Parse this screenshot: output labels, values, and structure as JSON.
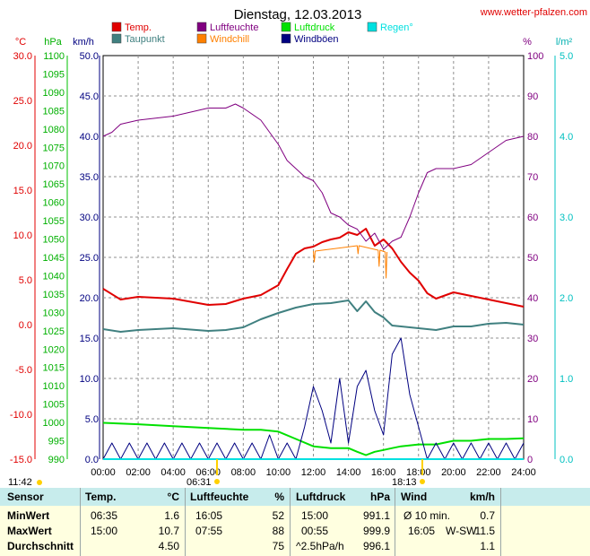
{
  "title": "Dienstag, 12.03.2013",
  "site": "www.wetter-pfalzen.com",
  "colors": {
    "temp": "#e00000",
    "humidity": "#800080",
    "pressure": "#00e000",
    "rain": "#00e0e0",
    "dewpoint": "#408080",
    "windchill": "#ff8000",
    "windgust": "#000080",
    "wind": "#0000c0"
  },
  "legend": [
    {
      "label": "Temp.",
      "color": "#e00000"
    },
    {
      "label": "Luftfeuchte",
      "color": "#800080"
    },
    {
      "label": "Luftdruck",
      "color": "#00e000"
    },
    {
      "label": "Regen°",
      "color": "#00e0e0"
    },
    {
      "label": "Taupunkt",
      "color": "#408080"
    },
    {
      "label": "Windchill",
      "color": "#ff8000"
    },
    {
      "label": "Windböen",
      "color": "#000080"
    }
  ],
  "axes": {
    "temp": {
      "unit": "°C",
      "min": -15,
      "max": 30,
      "ticks": [
        "30.0",
        "25.0",
        "20.0",
        "15.0",
        "10.0",
        "5.0",
        "0.0",
        "-5.0",
        "-10.0",
        "-15.0"
      ]
    },
    "pressure": {
      "unit": "hPa",
      "min": 990,
      "max": 1100,
      "ticks": [
        "1100",
        "1095",
        "1090",
        "1085",
        "1080",
        "1075",
        "1070",
        "1065",
        "1060",
        "1055",
        "1050",
        "1045",
        "1040",
        "1035",
        "1030",
        "1025",
        "1020",
        "1015",
        "1010",
        "1005",
        "1000",
        "995",
        "990"
      ]
    },
    "wind": {
      "unit": "km/h",
      "min": 0,
      "max": 50,
      "ticks": [
        "50.0",
        "45.0",
        "40.0",
        "35.0",
        "30.0",
        "25.0",
        "20.0",
        "15.0",
        "10.0",
        "5.0",
        "0.0"
      ]
    },
    "humidity": {
      "unit": "%",
      "min": 0,
      "max": 100,
      "ticks": [
        "100",
        "90",
        "80",
        "70",
        "60",
        "50",
        "40",
        "30",
        "20",
        "10",
        "0"
      ]
    },
    "rain": {
      "unit": "l/m²",
      "min": 0,
      "max": 5,
      "ticks": [
        "5.0",
        "4.0",
        "3.0",
        "2.0",
        "1.0",
        "0.0"
      ]
    },
    "x_ticks": [
      "00:00",
      "02:00",
      "04:00",
      "06:00",
      "08:00",
      "10:00",
      "12:00",
      "14:00",
      "16:00",
      "18:00",
      "20:00",
      "22:00",
      "24:00"
    ]
  },
  "sun": {
    "moon_time": "11:42",
    "sunrise": "06:31",
    "sunset": "18:13"
  },
  "chart_data": {
    "type": "line",
    "x_unit": "hour",
    "grid": true,
    "legend_placement": "top",
    "series": [
      {
        "name": "Temp.",
        "axis": "temp",
        "x": [
          0,
          1,
          2,
          4,
          6,
          7,
          8,
          9,
          10,
          10.5,
          11,
          11.5,
          12,
          12.5,
          13,
          13.5,
          14,
          14.5,
          15,
          15.5,
          16,
          16.5,
          17,
          17.5,
          18,
          18.5,
          19,
          20,
          21,
          22,
          23,
          24
        ],
        "values": [
          4.0,
          2.8,
          3.1,
          2.9,
          2.2,
          2.3,
          2.9,
          3.3,
          4.4,
          6.2,
          7.9,
          8.5,
          8.7,
          9.2,
          9.5,
          9.7,
          10.3,
          10.0,
          10.7,
          8.8,
          9.5,
          8.5,
          7.0,
          5.8,
          4.9,
          3.5,
          2.9,
          3.6,
          3.2,
          2.8,
          2.4,
          2.0
        ]
      },
      {
        "name": "Taupunkt",
        "axis": "temp",
        "x": [
          0,
          1,
          2,
          4,
          6,
          7,
          8,
          9,
          10,
          11,
          12,
          13,
          14,
          14.5,
          15,
          15.5,
          16,
          16.5,
          17,
          18,
          19,
          20,
          21,
          22,
          23,
          24
        ],
        "values": [
          -0.5,
          -0.8,
          -0.6,
          -0.4,
          -0.7,
          -0.6,
          -0.3,
          0.6,
          1.3,
          1.9,
          2.3,
          2.4,
          2.7,
          1.5,
          2.6,
          1.4,
          0.8,
          -0.1,
          -0.2,
          -0.4,
          -0.6,
          -0.2,
          -0.2,
          0.1,
          0.2,
          0.0
        ]
      },
      {
        "name": "Windchill",
        "axis": "temp",
        "x": [
          12,
          12.05,
          12.1,
          14.5,
          14.55,
          14.6,
          15.7,
          15.75,
          15.8,
          16.1,
          16.15,
          16.2
        ],
        "values": [
          8.2,
          7.0,
          8.2,
          8.8,
          7.9,
          8.8,
          8.3,
          6.5,
          8.3,
          8.1,
          5.2,
          8.1
        ]
      },
      {
        "name": "Luftfeuchte",
        "axis": "humidity",
        "x": [
          0,
          0.5,
          1,
          2,
          4,
          5,
          6,
          7,
          7.55,
          8,
          9,
          10,
          10.5,
          11,
          11.5,
          12,
          12.5,
          13,
          13.5,
          14,
          14.5,
          15,
          15.5,
          16,
          16.5,
          17,
          17.5,
          18,
          18.5,
          19,
          20,
          21,
          22,
          23,
          24
        ],
        "values": [
          80,
          81,
          83,
          84,
          85,
          86,
          87,
          87,
          88,
          87,
          84,
          78,
          74,
          72,
          70,
          69,
          66,
          61,
          60,
          58,
          57,
          54,
          56,
          52,
          54,
          55,
          60,
          66,
          71,
          72,
          72,
          73,
          76,
          79,
          80
        ]
      },
      {
        "name": "Luftdruck",
        "axis": "pressure",
        "x": [
          0,
          2,
          4,
          6,
          8,
          9,
          10,
          11,
          12,
          13,
          14,
          14.5,
          15,
          15.5,
          16,
          16.5,
          17,
          18,
          19,
          20,
          21,
          22,
          23,
          24
        ],
        "values": [
          999.9,
          999.5,
          999.0,
          998.5,
          998.0,
          998.0,
          997.5,
          995.5,
          993.5,
          993.0,
          993.0,
          992.0,
          991.1,
          992.0,
          992.5,
          993.0,
          993.5,
          994.0,
          994.0,
          995.0,
          995.0,
          995.5,
          995.5,
          995.7
        ]
      },
      {
        "name": "Windböen",
        "axis": "wind",
        "x": [
          0,
          0.5,
          1,
          1.5,
          2,
          2.5,
          3,
          3.5,
          4,
          4.5,
          5,
          5.5,
          6,
          6.5,
          7,
          7.5,
          8,
          8.5,
          9,
          9.5,
          10,
          10.5,
          11,
          11.5,
          12,
          12.5,
          13,
          13.5,
          14,
          14.5,
          15,
          15.5,
          16,
          16.5,
          17,
          17.5,
          18,
          18.5,
          19,
          19.5,
          20,
          20.5,
          21,
          21.5,
          22,
          22.5,
          23,
          23.5,
          24
        ],
        "values": [
          0,
          2,
          0,
          2,
          0,
          2,
          0,
          2,
          0,
          2,
          0,
          2,
          0,
          2,
          0,
          2,
          0,
          2,
          0,
          3,
          0,
          2,
          0,
          4,
          9,
          6,
          2,
          10,
          2,
          9,
          11,
          6,
          3,
          13,
          15,
          8,
          4,
          0,
          2,
          0,
          2,
          0,
          2,
          0,
          2,
          0,
          2,
          0,
          2
        ]
      }
    ]
  },
  "stats": {
    "header": {
      "sensor": "Sensor",
      "temp": "Temp.",
      "temp_unit": "°C",
      "hum": "Luftfeuchte",
      "hum_unit": "%",
      "press": "Luftdruck",
      "press_unit": "hPa",
      "wind": "Wind",
      "wind_unit": "km/h"
    },
    "rows": [
      {
        "label": "MinWert",
        "t_time": "06:35",
        "t_val": "1.6",
        "h_time": "16:05",
        "h_val": "52",
        "p_time": "15:00",
        "p_val": "991.1",
        "w_time": "Ø 10 min.",
        "w_dir": "",
        "w_val": "0.7"
      },
      {
        "label": "MaxWert",
        "t_time": "15:00",
        "t_val": "10.7",
        "h_time": "07:55",
        "h_val": "88",
        "p_time": "00:55",
        "p_val": "999.9",
        "w_time": "16:05",
        "w_dir": "W-SW",
        "w_val": "11.5"
      },
      {
        "label": "Durchschnitt",
        "t_time": "",
        "t_val": "4.50",
        "h_time": "",
        "h_val": "75",
        "p_time": "^2.5hPa/h",
        "p_val": "996.1",
        "w_time": "",
        "w_dir": "",
        "w_val": "1.1"
      }
    ]
  }
}
